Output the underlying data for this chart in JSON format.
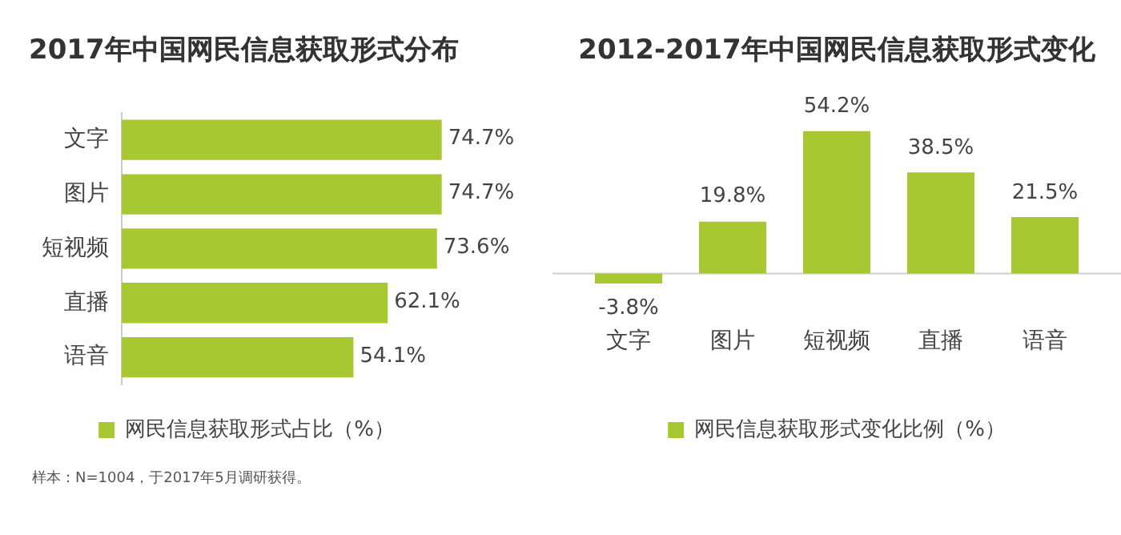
{
  "chart_data": [
    {
      "type": "bar",
      "orientation": "horizontal",
      "title": "2017年中国网民信息获取形式分布",
      "categories": [
        "文字",
        "图片",
        "短视频",
        "直播",
        "语音"
      ],
      "series": [
        {
          "name": "网民信息获取形式占比（%）",
          "color": "#a8c832",
          "values": [
            74.7,
            74.7,
            73.6,
            62.1,
            54.1
          ],
          "value_labels": [
            "74.7%",
            "74.7%",
            "73.6%",
            "62.1%",
            "54.1%"
          ]
        }
      ],
      "legend": "bottom",
      "grid": false,
      "tick_labels": "y",
      "annotations": [
        "样本：N=1004，于2017年5月调研获得。"
      ]
    },
    {
      "type": "bar",
      "title": "2012-2017年中国网民信息获取形式变化",
      "categories": [
        "文字",
        "图片",
        "短视频",
        "直播",
        "语音"
      ],
      "series": [
        {
          "name": "网民信息获取形式变化比例（%）",
          "color": "#a8c832",
          "values": [
            -3.8,
            19.8,
            54.2,
            38.5,
            21.5
          ],
          "value_labels": [
            "-3.8%",
            "19.8%",
            "54.2%",
            "38.5%",
            "21.5%"
          ]
        }
      ],
      "legend": "bottom",
      "grid": false,
      "tick_labels": "x"
    }
  ]
}
